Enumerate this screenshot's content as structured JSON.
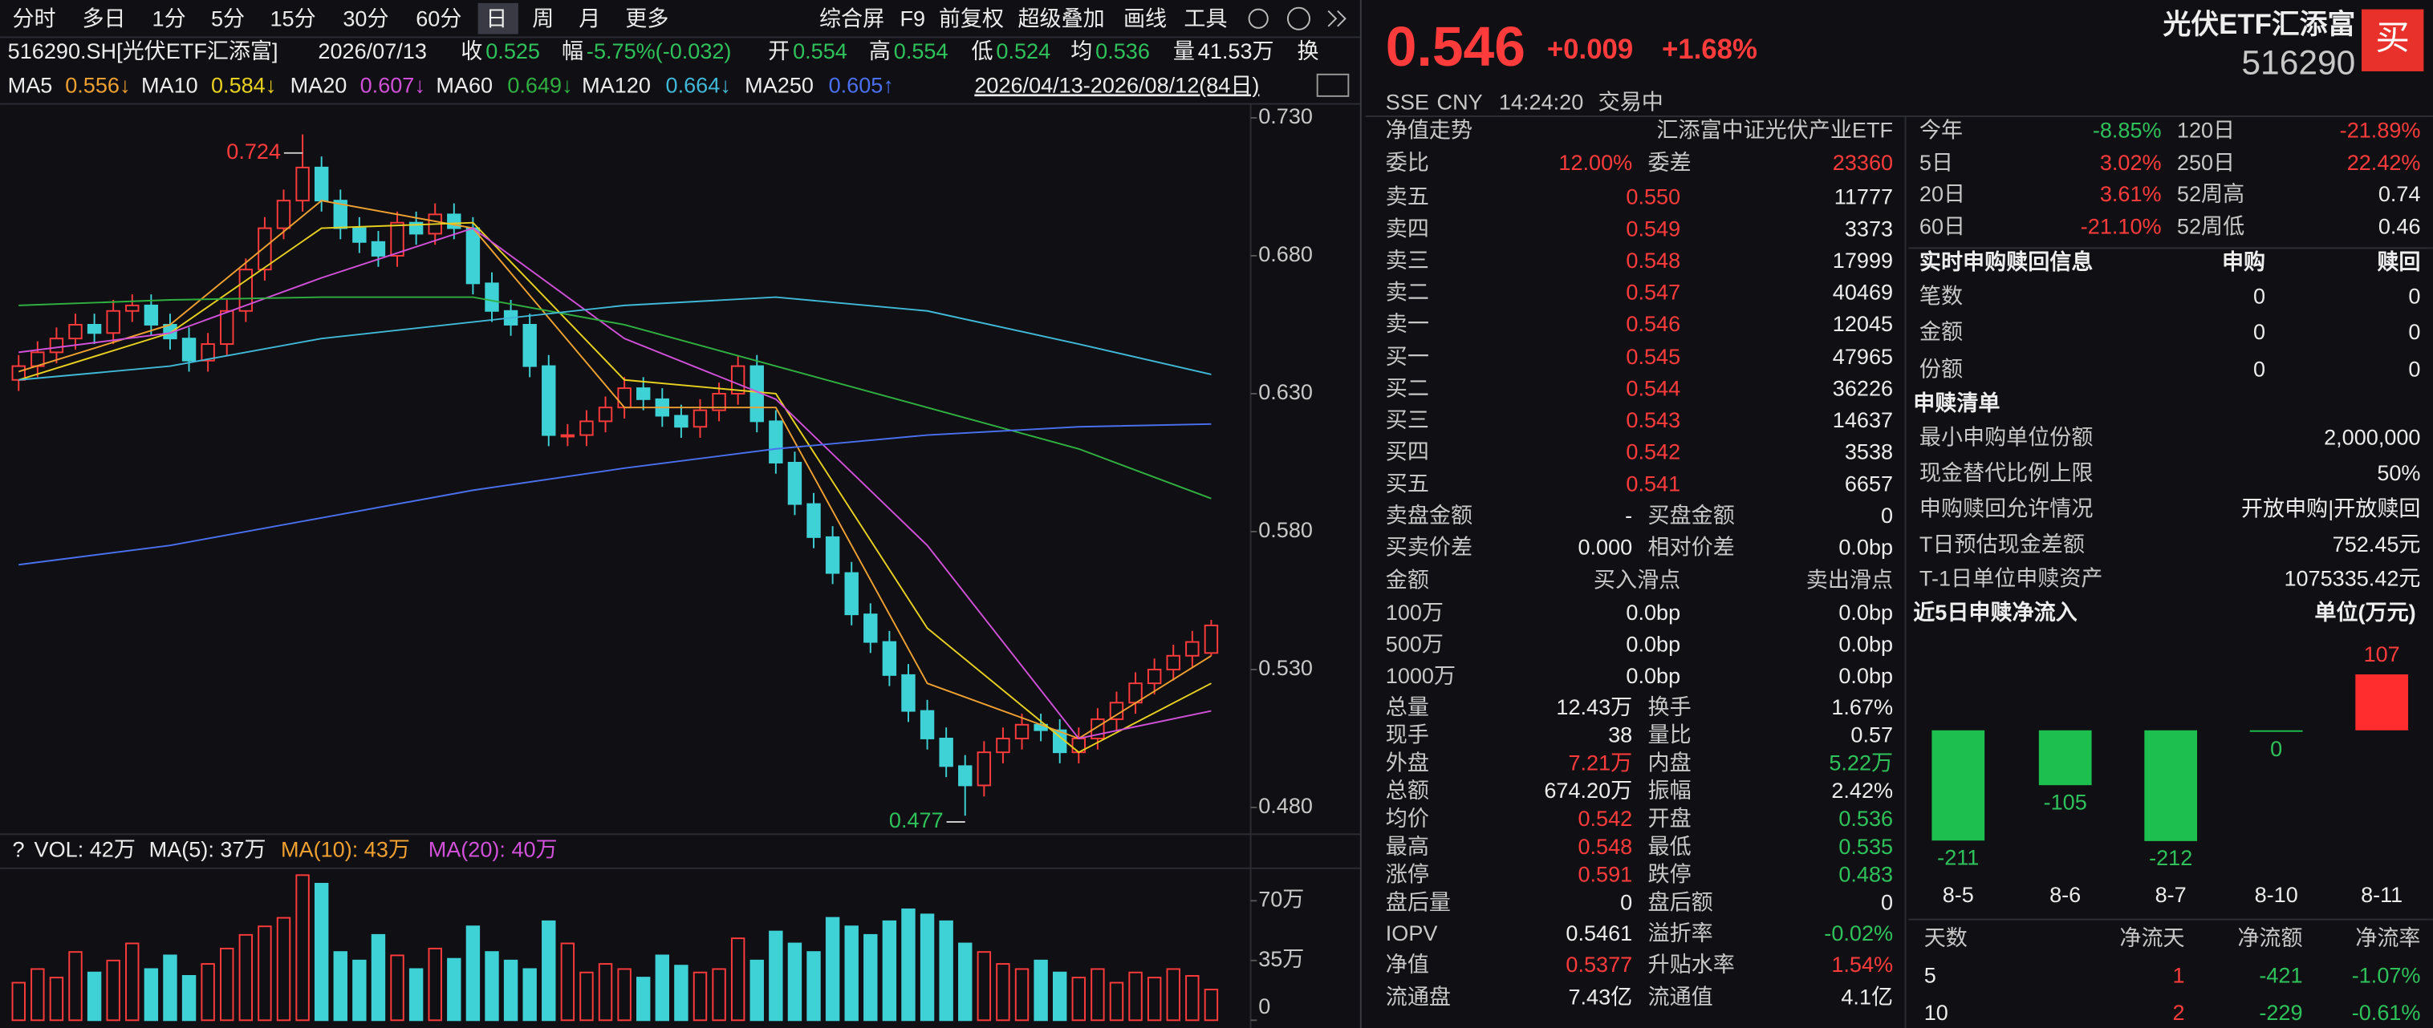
{
  "toolbar": {
    "periods": [
      "分时",
      "多日",
      "1分",
      "5分",
      "15分",
      "30分",
      "60分",
      "日",
      "周",
      "月",
      "更多"
    ],
    "selected": 7,
    "tools": [
      "综合屏",
      "F9",
      "前复权",
      "超级叠加",
      "画线",
      "工具"
    ]
  },
  "info_bar": [
    "516290.SH[光伏ETF汇添富]",
    "2026/07/13",
    "收",
    "0.525",
    "幅",
    "-5.75%(-0.032)",
    "开",
    "0.554",
    "高",
    "0.554",
    "低",
    "0.524",
    "均",
    "0.536",
    "量",
    "41.53万",
    "换"
  ],
  "kline": {
    "ylim": [
      0.472,
      0.7345
    ],
    "yticks": [
      {
        "value": 0.48,
        "label": "0.480"
      },
      {
        "value": 0.53,
        "label": "0.530"
      },
      {
        "value": 0.58,
        "label": "0.580"
      },
      {
        "value": 0.63,
        "label": "0.630"
      },
      {
        "value": 0.68,
        "label": "0.680"
      },
      {
        "value": 0.73,
        "label": "0.730"
      }
    ],
    "open": [
      0.635,
      0.64,
      0.645,
      0.65,
      0.655,
      0.652,
      0.66,
      0.662,
      0.655,
      0.65,
      0.642,
      0.648,
      0.66,
      0.675,
      0.69,
      0.7,
      0.712,
      0.7,
      0.69,
      0.685,
      0.68,
      0.692,
      0.688,
      0.695,
      0.69,
      0.67,
      0.66,
      0.655,
      0.64,
      0.615,
      0.615,
      0.62,
      0.625,
      0.632,
      0.628,
      0.622,
      0.618,
      0.624,
      0.63,
      0.64,
      0.62,
      0.605,
      0.59,
      0.578,
      0.565,
      0.55,
      0.54,
      0.528,
      0.515,
      0.505,
      0.495,
      0.488,
      0.5,
      0.505,
      0.51,
      0.508,
      0.5,
      0.505,
      0.512,
      0.518,
      0.525,
      0.53,
      0.535,
      0.536
    ],
    "high": [
      0.644,
      0.649,
      0.654,
      0.659,
      0.659,
      0.664,
      0.666,
      0.666,
      0.659,
      0.654,
      0.652,
      0.664,
      0.679,
      0.694,
      0.704,
      0.724,
      0.716,
      0.704,
      0.694,
      0.689,
      0.696,
      0.696,
      0.699,
      0.699,
      0.694,
      0.674,
      0.664,
      0.659,
      0.644,
      0.619,
      0.624,
      0.629,
      0.636,
      0.636,
      0.632,
      0.626,
      0.628,
      0.634,
      0.644,
      0.644,
      0.624,
      0.609,
      0.594,
      0.582,
      0.569,
      0.554,
      0.544,
      0.532,
      0.519,
      0.509,
      0.499,
      0.504,
      0.509,
      0.514,
      0.514,
      0.512,
      0.509,
      0.516,
      0.522,
      0.529,
      0.534,
      0.539,
      0.544,
      0.548
    ],
    "low": [
      0.631,
      0.636,
      0.641,
      0.646,
      0.648,
      0.648,
      0.656,
      0.651,
      0.646,
      0.638,
      0.638,
      0.644,
      0.656,
      0.671,
      0.686,
      0.696,
      0.696,
      0.686,
      0.681,
      0.676,
      0.676,
      0.684,
      0.684,
      0.686,
      0.666,
      0.656,
      0.651,
      0.636,
      0.611,
      0.611,
      0.611,
      0.616,
      0.621,
      0.624,
      0.618,
      0.614,
      0.614,
      0.62,
      0.626,
      0.616,
      0.601,
      0.586,
      0.574,
      0.561,
      0.546,
      0.536,
      0.524,
      0.511,
      0.501,
      0.491,
      0.477,
      0.484,
      0.496,
      0.501,
      0.504,
      0.496,
      0.496,
      0.501,
      0.508,
      0.514,
      0.521,
      0.526,
      0.531,
      0.535
    ],
    "close": [
      0.64,
      0.645,
      0.65,
      0.655,
      0.652,
      0.66,
      0.662,
      0.655,
      0.65,
      0.642,
      0.648,
      0.66,
      0.675,
      0.69,
      0.7,
      0.712,
      0.7,
      0.69,
      0.685,
      0.68,
      0.692,
      0.688,
      0.695,
      0.69,
      0.67,
      0.66,
      0.655,
      0.64,
      0.615,
      0.615,
      0.62,
      0.625,
      0.632,
      0.628,
      0.622,
      0.618,
      0.624,
      0.63,
      0.64,
      0.62,
      0.605,
      0.59,
      0.578,
      0.565,
      0.55,
      0.54,
      0.528,
      0.515,
      0.505,
      0.495,
      0.488,
      0.5,
      0.505,
      0.51,
      0.508,
      0.5,
      0.505,
      0.512,
      0.518,
      0.525,
      0.53,
      0.535,
      0.54,
      0.546
    ],
    "ma": [
      {
        "name": "MA5",
        "label": "0.556↓",
        "color": "#f0a030",
        "x": [
          0,
          8,
          16,
          24,
          32,
          40,
          48,
          56,
          63
        ],
        "values": [
          0.638,
          0.655,
          0.7,
          0.69,
          0.625,
          0.625,
          0.525,
          0.505,
          0.535
        ]
      },
      {
        "name": "MA10",
        "label": "0.584↓",
        "color": "#e8d020",
        "x": [
          0,
          8,
          16,
          24,
          32,
          40,
          48,
          56,
          63
        ],
        "values": [
          0.635,
          0.652,
          0.69,
          0.692,
          0.635,
          0.63,
          0.545,
          0.5,
          0.525
        ]
      },
      {
        "name": "MA20",
        "label": "0.607↓",
        "color": "#d050d8",
        "x": [
          0,
          8,
          16,
          24,
          32,
          40,
          48,
          56,
          63
        ],
        "values": [
          0.645,
          0.652,
          0.672,
          0.69,
          0.65,
          0.628,
          0.575,
          0.505,
          0.515
        ]
      },
      {
        "name": "MA60",
        "label": "0.649↓",
        "color": "#30b040",
        "x": [
          0,
          8,
          16,
          24,
          32,
          40,
          48,
          56,
          63
        ],
        "values": [
          0.662,
          0.664,
          0.665,
          0.665,
          0.655,
          0.64,
          0.625,
          0.61,
          0.592
        ]
      },
      {
        "name": "MA120",
        "label": "0.664↓",
        "color": "#40b8d8",
        "x": [
          0,
          8,
          16,
          24,
          32,
          40,
          48,
          56,
          63
        ],
        "values": [
          0.635,
          0.64,
          0.65,
          0.656,
          0.662,
          0.665,
          0.66,
          0.648,
          0.637
        ]
      },
      {
        "name": "MA250",
        "label": "0.605↑",
        "color": "#4a70f0",
        "x": [
          0,
          8,
          16,
          24,
          32,
          40,
          48,
          56,
          63
        ],
        "values": [
          0.568,
          0.575,
          0.585,
          0.595,
          0.603,
          0.61,
          0.615,
          0.618,
          0.619
        ]
      }
    ],
    "range": "2026/04/13-2026/08/12(84日)"
  },
  "volume": {
    "legend": [
      "?",
      "VOL: 42万",
      "MA(5): 37万",
      "MA(10): 43万",
      "MA(20): 40万"
    ],
    "ylim": [
      0,
      89
    ],
    "yticks": [
      0,
      {
        "value": 35,
        "label": "35万"
      },
      {
        "value": 70,
        "label": "70万"
      }
    ],
    "values": [
      22,
      30,
      25,
      40,
      28,
      35,
      45,
      30,
      38,
      26,
      33,
      42,
      50,
      55,
      60,
      85,
      80,
      40,
      35,
      50,
      38,
      30,
      42,
      36,
      55,
      40,
      35,
      30,
      58,
      45,
      28,
      33,
      30,
      25,
      38,
      32,
      28,
      30,
      48,
      35,
      52,
      45,
      40,
      60,
      55,
      50,
      58,
      65,
      62,
      58,
      45,
      40,
      33,
      30,
      35,
      28,
      25,
      30,
      22,
      28,
      25,
      30,
      26,
      18
    ]
  },
  "quote": {
    "price": 0.546,
    "change": "+0.009",
    "pct": "+1.68%",
    "name": "光伏ETF汇添富",
    "code": "516290",
    "buy": "买",
    "status": [
      "SSE",
      "CNY",
      "14:24:20",
      "交易中"
    ]
  },
  "left_table": [
    [
      "净值走势",
      "汇添富中证光伏产业ETF"
    ],
    [
      "委比",
      "12.00%",
      "委差",
      "23360"
    ],
    [
      "卖五",
      "0.550",
      "11777"
    ],
    [
      "卖四",
      "0.549",
      "3373"
    ],
    [
      "卖三",
      "0.548",
      "17999"
    ],
    [
      "卖二",
      "0.547",
      "40469"
    ],
    [
      "卖一",
      "0.546",
      "12045"
    ],
    [
      "买一",
      "0.545",
      "47965"
    ],
    [
      "买二",
      "0.544",
      "36226"
    ],
    [
      "买三",
      "0.543",
      "14637"
    ],
    [
      "买四",
      "0.542",
      "3538"
    ],
    [
      "买五",
      "0.541",
      "6657"
    ],
    [
      "卖盘金额",
      "-",
      "买盘金额",
      "0"
    ],
    [
      "买卖价差",
      "0.000",
      "相对价差",
      "0.0bp"
    ],
    [
      "金额",
      "买入滑点",
      "卖出滑点"
    ],
    [
      "100万",
      "0.0bp",
      "0.0bp"
    ],
    [
      "500万",
      "0.0bp",
      "0.0bp"
    ],
    [
      "1000万",
      "0.0bp",
      "0.0bp"
    ],
    [
      "总量",
      "12.43万",
      "换手",
      "1.67%"
    ],
    [
      "现手",
      "38",
      "量比",
      "0.57"
    ],
    [
      "外盘",
      "7.21万",
      "内盘",
      "5.22万"
    ],
    [
      "总额",
      "674.20万",
      "振幅",
      "2.42%"
    ],
    [
      "均价",
      "0.542",
      "开盘",
      "0.536"
    ],
    [
      "最高",
      "0.548",
      "最低",
      "0.535"
    ],
    [
      "涨停",
      "0.591",
      "跌停",
      "0.483"
    ],
    [
      "盘后量",
      "0",
      "盘后额",
      "0"
    ],
    [
      "IOPV",
      "0.5461",
      "溢折率",
      "-0.02%"
    ],
    [
      "净值",
      "0.5377",
      "升贴水率",
      "1.54%"
    ],
    [
      "流通盘",
      "7.43亿",
      "流通值",
      "4.1亿"
    ]
  ],
  "right_stats": [
    [
      "今年",
      "-8.85%",
      "120日",
      "-21.89%"
    ],
    [
      "5日",
      "3.02%",
      "250日",
      "22.42%"
    ],
    [
      "20日",
      "3.61%",
      "52周高",
      "0.74"
    ],
    [
      "60日",
      "-21.10%",
      "52周低",
      "0.46"
    ]
  ],
  "subscription": {
    "header": [
      "实时申购赎回信息",
      "申购",
      "赎回"
    ],
    "rows": [
      [
        "笔数",
        "0",
        "0"
      ],
      [
        "金额",
        "0",
        "0"
      ],
      [
        "份额",
        "0",
        "0"
      ]
    ]
  },
  "list": {
    "title": "申赎清单",
    "rows": [
      [
        "最小申购单位份额",
        "2,000,000"
      ],
      [
        "现金替代比例上限",
        "50%"
      ],
      [
        "申购赎回允许情况",
        "开放申购|开放赎回"
      ],
      [
        "T日预估现金差额",
        "752.45元"
      ],
      [
        "T-1日单位申赎资产",
        "1075335.42元"
      ]
    ]
  },
  "net_flow": {
    "type": "bar",
    "title": "近5日申赎净流入",
    "unit": "单位(万元)",
    "categories": [
      "8-5",
      "8-6",
      "8-7",
      "8-10",
      "8-11"
    ],
    "values": [
      -211,
      -105,
      -212,
      0,
      107
    ],
    "colors": {
      "negative": "#1dbf4e",
      "positive": "#ff2d2d"
    }
  },
  "days_table": {
    "header": [
      "天数",
      "净流天",
      "净流额",
      "净流率"
    ],
    "rows": [
      [
        "5",
        "1",
        "-421",
        "-1.07%"
      ],
      [
        "10",
        "2",
        "-229",
        "-0.61%"
      ]
    ]
  }
}
